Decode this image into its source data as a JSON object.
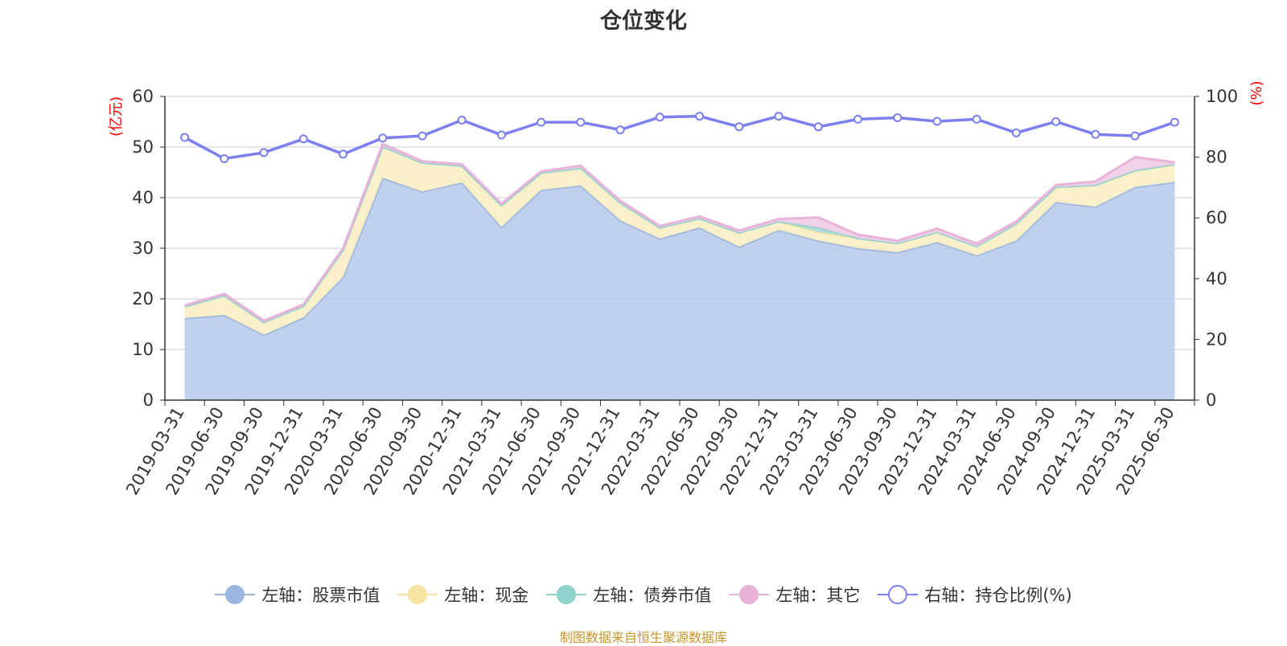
{
  "title": "仓位变化",
  "source_note": "制图数据来自恒生聚源数据库",
  "chart_data": {
    "type": "area",
    "title": "仓位变化",
    "x": [
      "2019-03-31",
      "2019-06-30",
      "2019-09-30",
      "2019-12-31",
      "2020-03-31",
      "2020-06-30",
      "2020-09-30",
      "2020-12-31",
      "2021-03-31",
      "2021-06-30",
      "2021-09-30",
      "2021-12-31",
      "2022-03-31",
      "2022-06-30",
      "2022-09-30",
      "2022-12-31",
      "2023-03-31",
      "2023-06-30",
      "2023-09-30",
      "2023-12-31",
      "2024-03-31",
      "2024-06-30",
      "2024-09-30",
      "2024-12-31",
      "2025-03-31",
      "2025-06-30"
    ],
    "left_axis": {
      "label": "(亿元)",
      "ylim": [
        0,
        60
      ],
      "ticks": [
        "0",
        "10",
        "20",
        "30",
        "40",
        "50",
        "60"
      ],
      "label_color": "#ff0000"
    },
    "right_axis": {
      "label": "(%)",
      "ylim": [
        0,
        100
      ],
      "ticks": [
        "0",
        "20",
        "40",
        "60",
        "80",
        "100"
      ],
      "label_color": "#ff0000"
    },
    "grid": true,
    "legend_position": "bottom",
    "series": [
      {
        "name": "左轴：股票市值",
        "axis": "left",
        "kind": "stacked-area",
        "color": "#9ab5e0",
        "fill": "#b8cceb",
        "values": [
          16.2,
          16.8,
          12.9,
          16.3,
          24.3,
          43.9,
          41.2,
          43.0,
          34.2,
          41.5,
          42.4,
          35.5,
          31.9,
          34.1,
          30.3,
          33.6,
          31.5,
          30.0,
          29.2,
          31.2,
          28.6,
          31.5,
          39.1,
          38.2,
          42.1,
          43.1
        ]
      },
      {
        "name": "左轴：现金",
        "axis": "left",
        "kind": "stacked-area",
        "color": "#f6e3a1",
        "fill": "#faeec4",
        "values": [
          2.3,
          3.9,
          2.5,
          2.3,
          5.4,
          6.2,
          5.7,
          3.3,
          4.3,
          3.4,
          3.5,
          3.5,
          2.2,
          1.8,
          2.8,
          1.7,
          1.7,
          2.0,
          1.8,
          2.0,
          1.8,
          3.4,
          3.0,
          4.3,
          3.3,
          3.5
        ]
      },
      {
        "name": "左轴：债券市值",
        "axis": "left",
        "kind": "stacked-area",
        "color": "#8fd3cc",
        "fill": "#a8ddd6",
        "values": [
          0,
          0,
          0,
          0,
          0,
          0,
          0,
          0,
          0,
          0,
          0,
          0,
          0,
          0,
          0,
          0,
          0.9,
          0,
          0,
          0,
          0,
          0,
          0,
          0,
          0,
          0
        ]
      },
      {
        "name": "左轴：其它",
        "axis": "left",
        "kind": "stacked-area",
        "color": "#e7b3d9",
        "fill": "#efcde6",
        "values": [
          0.2,
          0.3,
          0.3,
          0.3,
          0.3,
          0.5,
          0.3,
          0.3,
          0.3,
          0.3,
          0.4,
          0.4,
          0.3,
          0.4,
          0.4,
          0.5,
          2.0,
          0.7,
          0.5,
          0.7,
          0.5,
          0.4,
          0.4,
          0.7,
          2.6,
          0.4
        ]
      },
      {
        "name": "右轴：持仓比例(%)",
        "axis": "right",
        "kind": "line",
        "color": "#7b7ff0",
        "values": [
          86.5,
          79.5,
          81.5,
          86.0,
          81.0,
          86.3,
          87.0,
          92.2,
          87.3,
          91.5,
          91.5,
          89.0,
          93.2,
          93.5,
          90.0,
          93.5,
          90.0,
          92.5,
          93.0,
          91.8,
          92.5,
          88.0,
          91.7,
          87.5,
          87.0,
          91.5
        ]
      }
    ]
  }
}
